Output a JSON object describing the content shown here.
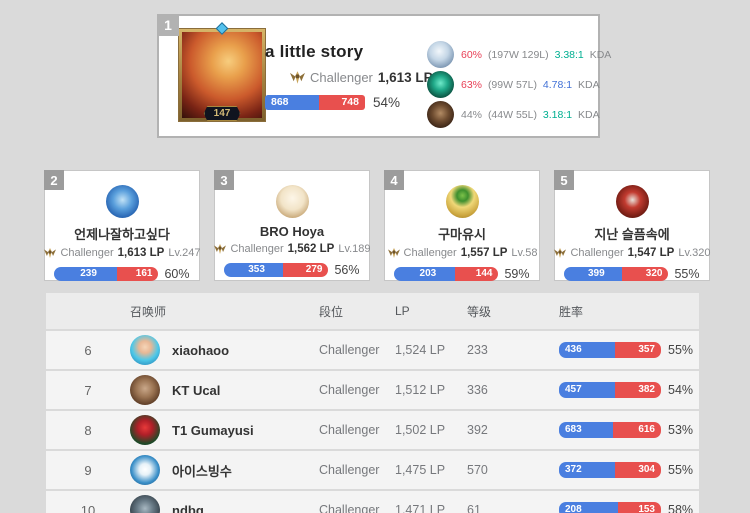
{
  "colors": {
    "page_bg": "#dadada",
    "card_bg": "#ffffff",
    "win_blue": "#4a7fe0",
    "loss_red": "#e8504e",
    "hot_winrate_red": "#e84057",
    "kda_green": "#00af91",
    "kda_blue": "#4171d6",
    "muted_gray": "#87898c",
    "badge_gray": "#9c9c9c"
  },
  "top_player": {
    "rank": "1",
    "summoner_level": "147",
    "name": "a little story",
    "tier": "Challenger",
    "lp": "1,613 LP",
    "wins": "868",
    "losses": "748",
    "winrate": "54%",
    "champions": [
      {
        "winrate": "60%",
        "record": "(197W 129L)",
        "kda": "3.38:1",
        "kda_label": "KDA",
        "winrate_color": "#e84057",
        "kda_color": "#00af91"
      },
      {
        "winrate": "63%",
        "record": "(99W 57L)",
        "kda": "4.78:1",
        "kda_label": "KDA",
        "winrate_color": "#e84057",
        "kda_color": "#4171d6"
      },
      {
        "winrate": "44%",
        "record": "(44W 55L)",
        "kda": "3.18:1",
        "kda_label": "KDA",
        "winrate_color": "#87898c",
        "kda_color": "#00af91"
      }
    ]
  },
  "cards": [
    {
      "rank": "2",
      "name": "언제나잘하고싶다",
      "tier": "Challenger",
      "lp": "1,613 LP",
      "level": "Lv.247",
      "wins": "239",
      "losses": "161",
      "winrate": "60%"
    },
    {
      "rank": "3",
      "name": "BRO Hoya",
      "tier": "Challenger",
      "lp": "1,562 LP",
      "level": "Lv.189",
      "wins": "353",
      "losses": "279",
      "winrate": "56%"
    },
    {
      "rank": "4",
      "name": "구마유시",
      "tier": "Challenger",
      "lp": "1,557 LP",
      "level": "Lv.58",
      "wins": "203",
      "losses": "144",
      "winrate": "59%"
    },
    {
      "rank": "5",
      "name": "지난 슬픔속에",
      "tier": "Challenger",
      "lp": "1,547 LP",
      "level": "Lv.320",
      "wins": "399",
      "losses": "320",
      "winrate": "55%"
    }
  ],
  "table": {
    "headers": {
      "summoner": "召唤师",
      "tier": "段位",
      "lp": "LP",
      "level": "等级",
      "winrate": "胜率"
    },
    "rows": [
      {
        "rank": "6",
        "name": "xiaohaoo",
        "tier": "Challenger",
        "lp": "1,524 LP",
        "level": "233",
        "wins": "436",
        "losses": "357",
        "winrate": "55%"
      },
      {
        "rank": "7",
        "name": "KT Ucal",
        "tier": "Challenger",
        "lp": "1,512 LP",
        "level": "336",
        "wins": "457",
        "losses": "382",
        "winrate": "54%"
      },
      {
        "rank": "8",
        "name": "T1 Gumayusi",
        "tier": "Challenger",
        "lp": "1,502 LP",
        "level": "392",
        "wins": "683",
        "losses": "616",
        "winrate": "53%"
      },
      {
        "rank": "9",
        "name": "아이스빙수",
        "tier": "Challenger",
        "lp": "1,475 LP",
        "level": "570",
        "wins": "372",
        "losses": "304",
        "winrate": "55%"
      },
      {
        "rank": "10",
        "name": "ndbg",
        "tier": "Challenger",
        "lp": "1,471 LP",
        "level": "61",
        "wins": "208",
        "losses": "153",
        "winrate": "58%"
      }
    ]
  }
}
